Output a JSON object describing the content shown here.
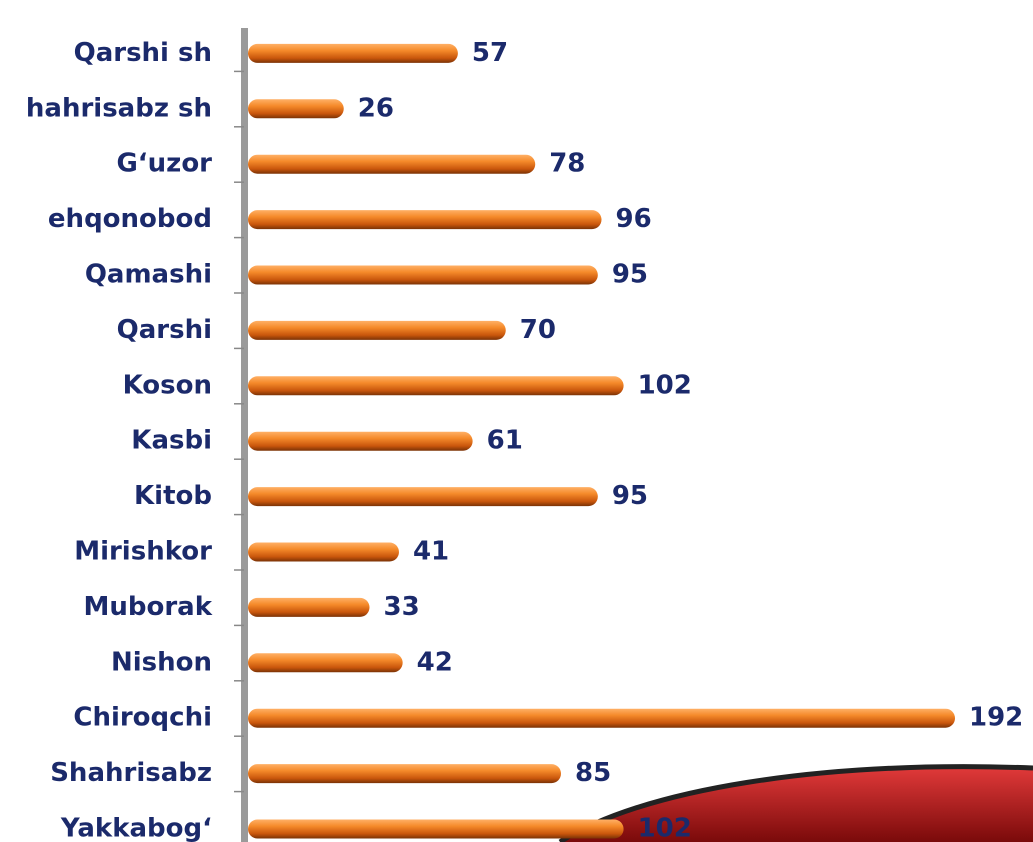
{
  "chart_data": {
    "type": "bar",
    "orientation": "horizontal",
    "categories": [
      "Qarshi sh",
      "hahrisabz sh",
      "G‘uzor",
      "ehqonobod",
      "Qamashi",
      "Qarshi",
      "Koson",
      "Kasbi",
      "Kitob",
      "Mirishkor",
      "Muborak",
      "Nishon",
      "Chiroqchi",
      "Shahrisabz",
      "Yakkabog‘"
    ],
    "values": [
      57,
      26,
      78,
      96,
      95,
      70,
      102,
      61,
      95,
      41,
      33,
      42,
      192,
      85,
      102
    ],
    "color": "#f07a1a"
  }
}
